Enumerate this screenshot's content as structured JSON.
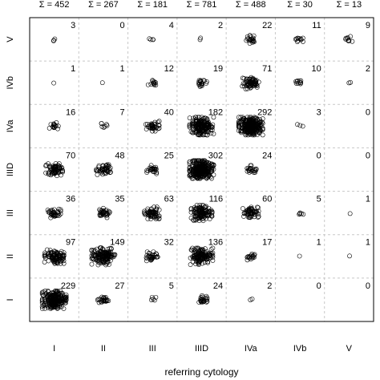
{
  "chart_data": {
    "type": "scatter",
    "subtype": "jittered contingency table",
    "xlabel": "referring cytology",
    "ylabel": "",
    "x_categories": [
      "I",
      "II",
      "III",
      "IIID",
      "IVa",
      "IVb",
      "V"
    ],
    "y_categories": [
      "I",
      "II",
      "III",
      "IIID",
      "IVa",
      "IVb",
      "V"
    ],
    "column_sum_labels": [
      "Σ = 452",
      "Σ = 267",
      "Σ = 181",
      "Σ = 781",
      "Σ = 488",
      "Σ = 30",
      "Σ = 13"
    ],
    "counts": [
      {
        "y": "V",
        "values": [
          3,
          0,
          4,
          2,
          22,
          11,
          9
        ]
      },
      {
        "y": "IVb",
        "values": [
          1,
          1,
          12,
          19,
          71,
          10,
          2
        ]
      },
      {
        "y": "IVa",
        "values": [
          16,
          7,
          40,
          182,
          292,
          3,
          0
        ]
      },
      {
        "y": "IIID",
        "values": [
          70,
          48,
          25,
          302,
          24,
          0,
          0
        ]
      },
      {
        "y": "III",
        "values": [
          36,
          35,
          63,
          116,
          60,
          5,
          1
        ]
      },
      {
        "y": "II",
        "values": [
          97,
          149,
          32,
          136,
          17,
          1,
          1
        ]
      },
      {
        "y": "I",
        "values": [
          229,
          27,
          5,
          24,
          2,
          0,
          0
        ]
      }
    ],
    "grid": true,
    "grid_style": "dashed",
    "marker": "open circle"
  }
}
